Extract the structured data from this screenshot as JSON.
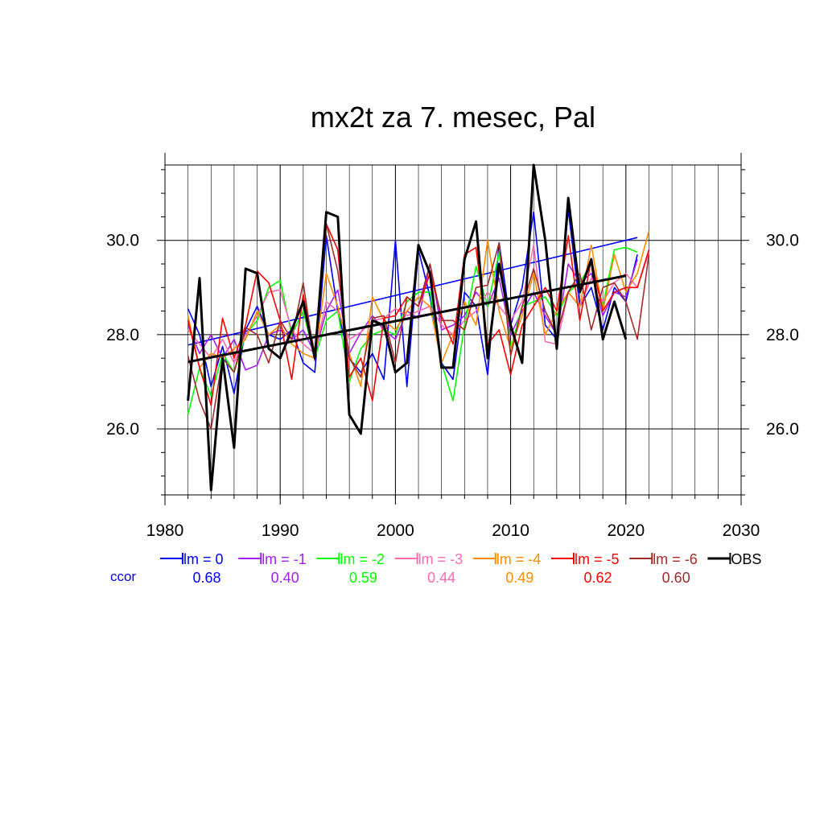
{
  "chart_data": {
    "type": "line",
    "title": "mx2t za 7. mesec, Pal",
    "xlim": [
      1980,
      2030
    ],
    "ylim": [
      24.6,
      31.6
    ],
    "x_ticks": [
      1980,
      1990,
      2000,
      2010,
      2020,
      2030
    ],
    "x_tick_labels": [
      "1980",
      "1990",
      "2000",
      "2010",
      "2020",
      "2030"
    ],
    "y_ticks": [
      26,
      28,
      30
    ],
    "y_tick_labels": [
      "26.0",
      "28.0",
      "30.0"
    ],
    "grid": true,
    "legend_position": "bottom",
    "ccor_label": "ccor",
    "series": [
      {
        "name": "lm = 0",
        "color": "#0000ff",
        "ccor": "0.68",
        "x": [
          1982,
          1983,
          1984,
          1985,
          1986,
          1987,
          1988,
          1989,
          1990,
          1991,
          1992,
          1993,
          1994,
          1995,
          1996,
          1997,
          1998,
          1999,
          2000,
          2001,
          2002,
          2003,
          2004,
          2005,
          2006,
          2007,
          2008,
          2009,
          2010,
          2011,
          2012,
          2013,
          2014,
          2015,
          2016,
          2017,
          2018,
          2019,
          2020,
          2021
        ],
        "y": [
          28.55,
          28.0,
          26.9,
          27.75,
          26.75,
          28.1,
          28.6,
          28.0,
          27.9,
          28.1,
          27.4,
          27.2,
          30.1,
          28.5,
          27.5,
          27.2,
          27.6,
          27.05,
          30.0,
          26.9,
          29.8,
          28.8,
          27.4,
          27.05,
          28.9,
          28.6,
          27.15,
          29.95,
          28.2,
          29.0,
          30.6,
          28.2,
          27.9,
          30.65,
          28.6,
          29.0,
          28.1,
          29.0,
          28.7,
          29.7
        ],
        "trend": [
          [
            1982,
            27.78
          ],
          [
            2021,
            30.06
          ]
        ]
      },
      {
        "name": "lm = -1",
        "color": "#a020f0",
        "ccor": "0.40",
        "x": [
          1982,
          1983,
          1984,
          1985,
          1986,
          1987,
          1988,
          1989,
          1990,
          1991,
          1992,
          1993,
          1994,
          1995,
          1996,
          1997,
          1998,
          1999,
          2000,
          2001,
          2002,
          2003,
          2004,
          2005,
          2006,
          2007,
          2008,
          2009,
          2010,
          2011,
          2012,
          2013,
          2014,
          2015,
          2016,
          2017,
          2018,
          2019,
          2020,
          2021
        ],
        "y": [
          28.2,
          27.6,
          28.0,
          27.5,
          27.9,
          27.25,
          27.35,
          28.0,
          28.1,
          27.9,
          28.1,
          27.6,
          28.5,
          28.95,
          27.6,
          28.05,
          28.4,
          28.1,
          27.9,
          28.5,
          28.35,
          29.5,
          28.1,
          28.2,
          28.4,
          28.9,
          28.6,
          29.2,
          28.0,
          28.5,
          28.9,
          28.4,
          28.0,
          29.5,
          29.1,
          29.3,
          28.4,
          28.9,
          28.8,
          29.6
        ]
      },
      {
        "name": "lm = -2",
        "color": "#00ff00",
        "ccor": "0.59",
        "x": [
          1982,
          1983,
          1984,
          1985,
          1986,
          1987,
          1988,
          1989,
          1990,
          1991,
          1992,
          1993,
          1994,
          1995,
          1996,
          1997,
          1998,
          1999,
          2000,
          2001,
          2002,
          2003,
          2004,
          2005,
          2006,
          2007,
          2008,
          2009,
          2010,
          2011,
          2012,
          2013,
          2014,
          2015,
          2016,
          2017,
          2018,
          2019,
          2020,
          2021
        ],
        "y": [
          26.3,
          27.3,
          26.7,
          27.6,
          27.2,
          28.0,
          28.3,
          29.0,
          29.15,
          28.0,
          28.5,
          27.5,
          28.3,
          28.5,
          27.0,
          27.7,
          28.0,
          28.1,
          28.0,
          28.7,
          28.9,
          28.9,
          27.4,
          26.6,
          28.2,
          29.45,
          28.6,
          29.75,
          27.7,
          28.6,
          28.7,
          28.8,
          28.4,
          28.9,
          29.1,
          29.5,
          28.6,
          29.8,
          29.85,
          29.75
        ]
      },
      {
        "name": "lm = -3",
        "color": "#ff69b4",
        "ccor": "0.44",
        "x": [
          1982,
          1983,
          1984,
          1985,
          1986,
          1987,
          1988,
          1989,
          1990,
          1991,
          1992,
          1993,
          1994,
          1995,
          1996,
          1997,
          1998,
          1999,
          2000,
          2001,
          2002,
          2003,
          2004,
          2005,
          2006,
          2007,
          2008,
          2009,
          2010,
          2011,
          2012,
          2013,
          2014,
          2015,
          2016,
          2017,
          2018,
          2019,
          2020,
          2021,
          2022
        ],
        "y": [
          28.1,
          27.8,
          27.5,
          27.9,
          27.4,
          28.0,
          28.4,
          28.9,
          28.95,
          28.1,
          27.8,
          27.6,
          28.7,
          28.5,
          27.9,
          28.05,
          28.3,
          28.35,
          28.55,
          28.4,
          28.5,
          28.6,
          28.2,
          28.0,
          28.3,
          28.5,
          28.9,
          28.6,
          28.3,
          28.7,
          29.9,
          27.85,
          27.8,
          28.9,
          28.6,
          29.2,
          28.7,
          29.1,
          29.3,
          29.0,
          29.75
        ]
      },
      {
        "name": "lm = -4",
        "color": "#ff8c00",
        "ccor": "0.49",
        "x": [
          1982,
          1983,
          1984,
          1985,
          1986,
          1987,
          1988,
          1989,
          1990,
          1991,
          1992,
          1993,
          1994,
          1995,
          1996,
          1997,
          1998,
          1999,
          2000,
          2001,
          2002,
          2003,
          2004,
          2005,
          2006,
          2007,
          2008,
          2009,
          2010,
          2011,
          2012,
          2013,
          2014,
          2015,
          2016,
          2017,
          2018,
          2019,
          2020,
          2021,
          2022
        ],
        "y": [
          28.4,
          27.3,
          27.6,
          27.5,
          27.7,
          27.9,
          28.5,
          28.0,
          28.2,
          27.8,
          27.6,
          27.5,
          29.3,
          28.6,
          27.6,
          26.9,
          28.8,
          28.3,
          28.1,
          28.5,
          28.8,
          28.6,
          27.4,
          28.0,
          28.7,
          28.2,
          30.0,
          28.5,
          27.7,
          28.4,
          29.3,
          28.0,
          28.5,
          28.9,
          28.6,
          29.9,
          28.5,
          29.7,
          28.9,
          29.3,
          30.2
        ]
      },
      {
        "name": "lm = -5",
        "color": "#ff0000",
        "ccor": "0.62",
        "x": [
          1982,
          1983,
          1984,
          1985,
          1986,
          1987,
          1988,
          1989,
          1990,
          1991,
          1992,
          1993,
          1994,
          1995,
          1996,
          1997,
          1998,
          1999,
          2000,
          2001,
          2002,
          2003,
          2004,
          2005,
          2006,
          2007,
          2008,
          2009,
          2010,
          2011,
          2012,
          2013,
          2014,
          2015,
          2016,
          2017,
          2018,
          2019,
          2020,
          2021,
          2022
        ],
        "y": [
          28.3,
          27.3,
          26.5,
          28.35,
          27.5,
          28.2,
          29.35,
          29.1,
          28.3,
          27.05,
          28.85,
          27.6,
          30.35,
          29.8,
          27.1,
          27.5,
          26.6,
          28.35,
          28.4,
          28.8,
          28.6,
          29.3,
          28.4,
          27.8,
          29.7,
          29.85,
          27.8,
          28.1,
          27.15,
          28.2,
          28.6,
          29.0,
          28.5,
          30.1,
          28.3,
          29.6,
          28.5,
          28.9,
          29.0,
          29.0,
          29.8
        ]
      },
      {
        "name": "lm = -6",
        "color": "#a52a2a",
        "ccor": "0.60",
        "x": [
          1982,
          1983,
          1984,
          1985,
          1986,
          1987,
          1988,
          1989,
          1990,
          1991,
          1992,
          1993,
          1994,
          1995,
          1996,
          1997,
          1998,
          1999,
          2000,
          2001,
          2002,
          2003,
          2004,
          2005,
          2006,
          2007,
          2008,
          2009,
          2010,
          2011,
          2012,
          2013,
          2014,
          2015,
          2016,
          2017,
          2018,
          2019,
          2020,
          2021,
          2022
        ],
        "y": [
          27.55,
          26.6,
          26.0,
          27.5,
          27.2,
          28.15,
          28.0,
          27.4,
          28.3,
          27.9,
          29.1,
          27.45,
          30.35,
          29.35,
          27.5,
          27.1,
          28.35,
          28.4,
          27.4,
          28.8,
          28.6,
          29.5,
          28.3,
          28.3,
          28.1,
          29.0,
          29.05,
          29.95,
          27.55,
          28.6,
          29.4,
          28.5,
          28.0,
          28.9,
          29.3,
          28.1,
          29.0,
          29.1,
          28.7,
          27.9,
          29.7
        ]
      },
      {
        "name": "OBS",
        "color": "#000000",
        "ccor": "",
        "x": [
          1982,
          1983,
          1984,
          1985,
          1986,
          1987,
          1988,
          1989,
          1990,
          1991,
          1992,
          1993,
          1994,
          1995,
          1996,
          1997,
          1998,
          1999,
          2000,
          2001,
          2002,
          2003,
          2004,
          2005,
          2006,
          2007,
          2008,
          2009,
          2010,
          2011,
          2012,
          2013,
          2014,
          2015,
          2016,
          2017,
          2018,
          2019,
          2020
        ],
        "y": [
          26.6,
          29.2,
          24.7,
          27.5,
          25.6,
          29.4,
          29.3,
          27.7,
          27.5,
          28.1,
          28.7,
          27.5,
          30.6,
          30.5,
          26.3,
          25.9,
          28.3,
          28.2,
          27.2,
          27.4,
          29.9,
          29.3,
          27.3,
          27.3,
          29.6,
          30.4,
          27.5,
          29.5,
          28.2,
          27.4,
          31.6,
          30.0,
          27.7,
          30.9,
          28.9,
          29.6,
          27.9,
          28.7,
          27.9
        ],
        "trend": [
          [
            1982,
            27.42
          ],
          [
            2020,
            29.25
          ]
        ]
      }
    ]
  }
}
